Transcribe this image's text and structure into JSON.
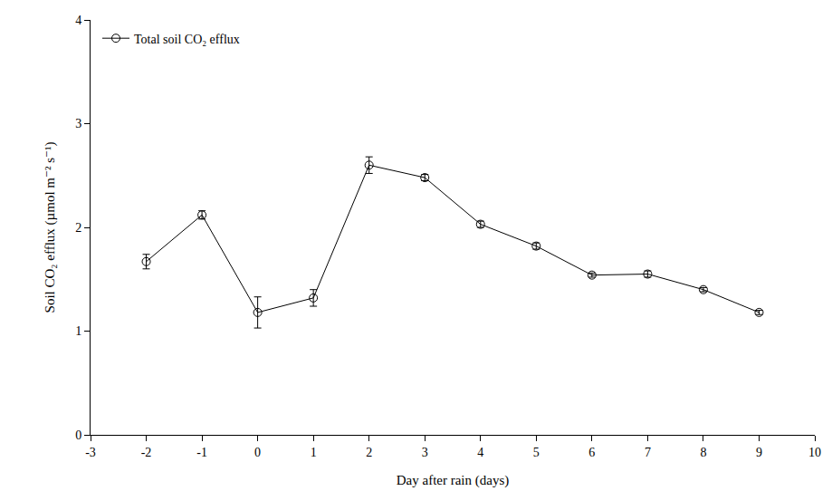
{
  "chart_data": {
    "type": "line",
    "x_label": "Day after rain (days)",
    "y_label": "Soil CO₂ efflux (µmol m⁻² s⁻¹)",
    "x": [
      -2,
      -1,
      0,
      1,
      2,
      3,
      4,
      5,
      6,
      7,
      8,
      9
    ],
    "series": [
      {
        "name": "Total soil CO₂ efflux",
        "color": "#000000",
        "marker": "circle-open",
        "line_style": "solid",
        "values": [
          1.67,
          2.12,
          1.18,
          1.32,
          2.6,
          2.48,
          2.03,
          1.82,
          1.54,
          1.55,
          1.4,
          1.18
        ],
        "errors": [
          0.07,
          0.04,
          0.15,
          0.08,
          0.08,
          0.03,
          0.03,
          0.03,
          0.02,
          0.03,
          0.02,
          0.02
        ]
      }
    ],
    "xlim": [
      -3,
      10
    ],
    "xticks": [
      -3,
      -2,
      -1,
      0,
      1,
      2,
      3,
      4,
      5,
      6,
      7,
      8,
      9,
      10
    ],
    "ylim": [
      0,
      4
    ],
    "yticks": [
      0,
      1,
      2,
      3,
      4
    ],
    "grid": false,
    "legend": "top left"
  }
}
